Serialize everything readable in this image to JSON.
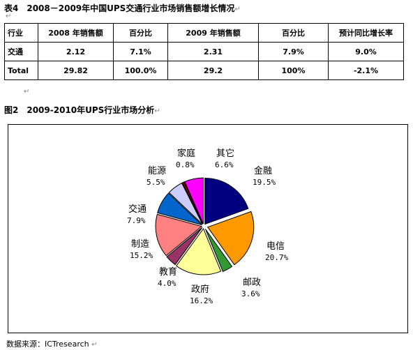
{
  "table_caption": "表4　2008－2009年中国UPS交通行业市场销售额增长情况",
  "table": {
    "headers": [
      "行业",
      "2008 年销售额",
      "百分比",
      "2009 年销售额",
      "百分比",
      "预计同比增长率"
    ],
    "rows": [
      [
        "交通",
        "2.12",
        "7.1%",
        "2.31",
        "7.9%",
        "9.0%"
      ],
      [
        "Total",
        "29.82",
        "100.0%",
        "29.2",
        "100%",
        "-2.1%"
      ]
    ]
  },
  "figure_caption": "图2　2009-2010年UPS行业市场分析",
  "chart_data": {
    "type": "pie",
    "title": "",
    "slices": [
      {
        "name": "金融",
        "value": 19.5,
        "label": "19.5%",
        "color": "#000080"
      },
      {
        "name": "电信",
        "value": 20.7,
        "label": "20.7%",
        "color": "#ff9900"
      },
      {
        "name": "邮政",
        "value": 3.6,
        "label": "3.6%",
        "color": "#339933"
      },
      {
        "name": "政府",
        "value": 16.2,
        "label": "16.2%",
        "color": "#ffff99"
      },
      {
        "name": "教育",
        "value": 4.0,
        "label": "4.0%",
        "color": "#993366"
      },
      {
        "name": "制造",
        "value": 15.2,
        "label": "15.2%",
        "color": "#ff8080"
      },
      {
        "name": "交通",
        "value": 7.9,
        "label": "7.9%",
        "color": "#0066cc"
      },
      {
        "name": "能源",
        "value": 5.5,
        "label": "5.5%",
        "color": "#ccccff"
      },
      {
        "name": "家庭",
        "value": 0.8,
        "label": "0.8%",
        "color": "#800000"
      },
      {
        "name": "其它",
        "value": 6.6,
        "label": "6.6%",
        "color": "#ff00ff"
      }
    ]
  },
  "source": "数据来源：ICTresearch"
}
